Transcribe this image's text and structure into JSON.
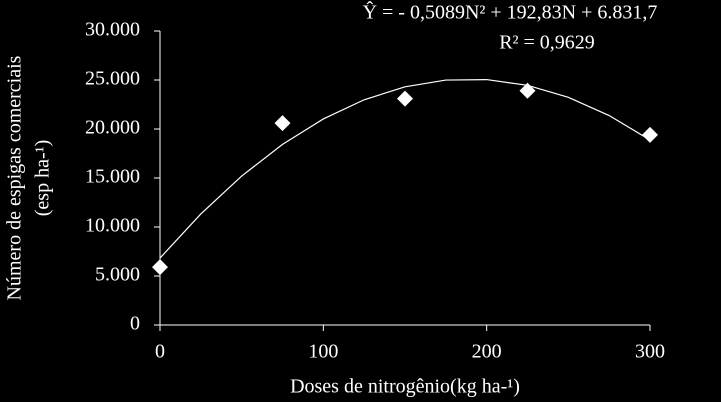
{
  "chart_data": {
    "type": "scatter",
    "equation": "Ŷ = - 0,5089N² + 192,83N + 6.831,7",
    "r_squared": "R² = 0,9629",
    "x_label": "Doses de nitrogênio(kg ha-¹)",
    "y_label": [
      "Número de espigas comerciais",
      "(esp ha-¹)"
    ],
    "series": [
      {
        "color": "#ffffff",
        "x": [
          0,
          75,
          150,
          225,
          300
        ],
        "values": [
          5900,
          20600,
          23100,
          23900,
          19400
        ]
      },
      {
        "type": "line",
        "color": "#ffffff",
        "x": [
          0,
          25,
          50,
          75,
          100,
          125,
          150,
          175,
          200,
          225,
          250,
          275,
          300
        ],
        "values": [
          6832,
          11335,
          15201,
          18431,
          21026,
          22984,
          24307,
          24992,
          25042,
          24456,
          23234,
          21374,
          18880
        ]
      }
    ],
    "xlim": [
      0,
      300
    ],
    "xticks": [
      0,
      100,
      200,
      300
    ],
    "ylim": [
      0,
      30000
    ],
    "yticks": [
      0,
      {
        "value": 5000,
        "label": "5.000"
      },
      {
        "value": 10000,
        "label": "10.000"
      },
      {
        "value": 15000,
        "label": "15.000"
      },
      {
        "value": 20000,
        "label": "20.000"
      },
      {
        "value": 25000,
        "label": "25.000"
      },
      {
        "value": 30000,
        "label": "30.000"
      }
    ]
  }
}
